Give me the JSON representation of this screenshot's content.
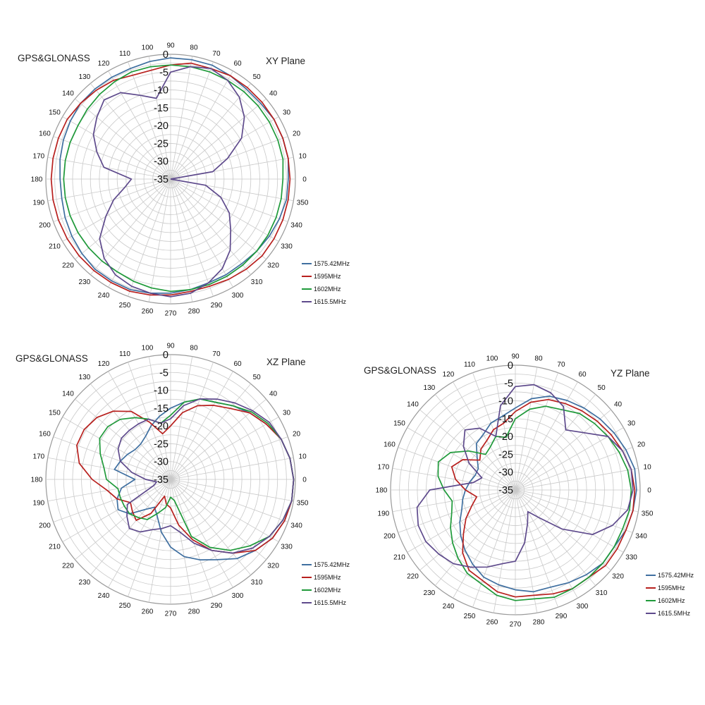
{
  "chart_data": [
    {
      "type": "polar-line",
      "title": "GPS&GLONASS",
      "subtitle": "XY Plane",
      "radial_ticks": [
        0,
        -5,
        -10,
        -15,
        -20,
        -25,
        -30,
        -35
      ],
      "rlim": [
        -35,
        0
      ],
      "angle_ticks": [
        0,
        10,
        20,
        30,
        40,
        50,
        60,
        70,
        80,
        90,
        100,
        110,
        120,
        130,
        140,
        150,
        160,
        170,
        180,
        190,
        200,
        210,
        220,
        230,
        240,
        250,
        260,
        270,
        280,
        290,
        300,
        310,
        320,
        330,
        340,
        350
      ],
      "grid": true,
      "legend_position": "bottom-right",
      "theta": [
        0,
        10,
        20,
        30,
        40,
        50,
        60,
        70,
        80,
        90,
        100,
        110,
        120,
        130,
        140,
        150,
        160,
        170,
        180,
        190,
        200,
        210,
        220,
        230,
        240,
        250,
        260,
        270,
        280,
        290,
        300,
        310,
        320,
        330,
        340,
        350
      ],
      "series": [
        {
          "name": "1575.42MHz",
          "color": "#3f6fa0",
          "values": [
            -2,
            -1.5,
            -1.5,
            -1.5,
            -2,
            -2,
            -1.5,
            -1,
            -1,
            -1,
            -1.5,
            -2,
            -2,
            -2,
            -2,
            -2.5,
            -3,
            -3.5,
            -4,
            -4,
            -3.5,
            -3,
            -2.5,
            -2,
            -2,
            -2,
            -2.5,
            -3,
            -3.5,
            -4,
            -4,
            -4,
            -3.5,
            -3,
            -2.5,
            -2
          ]
        },
        {
          "name": "1595MHz",
          "color": "#b8201e",
          "values": [
            -1.5,
            -1.5,
            -1.5,
            -1.5,
            -1.5,
            -1.5,
            -1.5,
            -2,
            -2,
            -3,
            -4,
            -4,
            -3,
            -2.5,
            -2,
            -1.5,
            -1.5,
            -1.5,
            -1.5,
            -1.5,
            -1.5,
            -1.5,
            -1.5,
            -1.5,
            -1.5,
            -1.5,
            -2,
            -2.5,
            -3,
            -3,
            -2.5,
            -2,
            -1.5,
            -1.5,
            -1.5,
            -1.5
          ]
        },
        {
          "name": "1602MHz",
          "color": "#1f9a3a",
          "values": [
            -3.5,
            -3,
            -3,
            -3,
            -3,
            -3,
            -3,
            -3,
            -3,
            -3,
            -3,
            -3,
            -3.5,
            -4,
            -4.5,
            -5,
            -5,
            -5,
            -5,
            -5,
            -5,
            -5,
            -5,
            -5,
            -5,
            -4.5,
            -4,
            -3.5,
            -3.5,
            -3.5,
            -3.5,
            -3.5,
            -3.5,
            -3.5,
            -3.5,
            -3.5
          ]
        },
        {
          "name": "1615.5MHz",
          "color": "#5e4a8c",
          "values": [
            -35,
            -23,
            -18,
            -12,
            -8,
            -5,
            -3,
            -2,
            -3,
            -5,
            -12,
            -10,
            -7,
            -6,
            -8,
            -10,
            -13,
            -16,
            -24,
            -22,
            -18,
            -14,
            -9,
            -6,
            -4,
            -3,
            -2.5,
            -2,
            -2.5,
            -4,
            -6,
            -9,
            -13,
            -16,
            -20,
            -25
          ]
        }
      ]
    },
    {
      "type": "polar-line",
      "title": "GPS&GLONASS",
      "subtitle": "XZ Plane",
      "radial_ticks": [
        0,
        -5,
        -10,
        -15,
        -20,
        -25,
        -30,
        -35
      ],
      "rlim": [
        -35,
        0
      ],
      "angle_ticks": [
        0,
        10,
        20,
        30,
        40,
        50,
        60,
        70,
        80,
        90,
        100,
        110,
        120,
        130,
        140,
        150,
        160,
        170,
        180,
        190,
        200,
        210,
        220,
        230,
        240,
        250,
        260,
        270,
        280,
        290,
        300,
        310,
        320,
        330,
        340,
        350
      ],
      "grid": true,
      "legend_position": "bottom-right",
      "theta": [
        0,
        10,
        20,
        30,
        40,
        50,
        60,
        70,
        80,
        90,
        100,
        110,
        120,
        130,
        140,
        150,
        160,
        170,
        180,
        190,
        200,
        210,
        220,
        230,
        240,
        250,
        260,
        270,
        280,
        290,
        300,
        310,
        320,
        330,
        340,
        350
      ],
      "series": [
        {
          "name": "1575.42MHz",
          "color": "#3f6fa0",
          "values": [
            -0.5,
            -1,
            -2,
            -4,
            -6,
            -8,
            -10,
            -11,
            -13,
            -15,
            -17,
            -19,
            -21,
            -22,
            -22,
            -21,
            -20,
            -19,
            -25,
            -21,
            -19,
            -18,
            -20,
            -24,
            -26,
            -24,
            -20,
            -16,
            -13,
            -11,
            -9,
            -6,
            -4,
            -2,
            -1,
            -0.5
          ]
        },
        {
          "name": "1595MHz",
          "color": "#b8201e",
          "values": [
            -0.5,
            -1,
            -2,
            -4,
            -6,
            -9,
            -11,
            -13,
            -16,
            -20,
            -22,
            -18,
            -13,
            -10,
            -8,
            -7,
            -7,
            -9,
            -13,
            -17,
            -19,
            -22,
            -21,
            -20,
            -24,
            -30,
            -28,
            -27,
            -22,
            -17,
            -12,
            -8,
            -4,
            -2,
            -1,
            -0.5
          ]
        },
        {
          "name": "1602MHz",
          "color": "#1f9a3a",
          "values": [
            -0.5,
            -1,
            -2,
            -3.5,
            -5.5,
            -8,
            -10,
            -11,
            -13,
            -17,
            -19,
            -17,
            -15,
            -13,
            -12,
            -12,
            -14,
            -16,
            -17,
            -20,
            -20,
            -20,
            -20,
            -21,
            -22,
            -25,
            -27,
            -30,
            -29,
            -18,
            -13,
            -9,
            -6,
            -3,
            -1.5,
            -0.5
          ]
        },
        {
          "name": "1615.5MHz",
          "color": "#5e4a8c",
          "values": [
            -0.5,
            -1,
            -2,
            -3,
            -5,
            -7,
            -9,
            -11,
            -14,
            -18,
            -19,
            -17,
            -17,
            -17,
            -17,
            -18,
            -20,
            -24,
            -28,
            -31,
            -30,
            -21,
            -19,
            -17,
            -18,
            -20,
            -21,
            -22,
            -20,
            -16,
            -12,
            -8,
            -5,
            -3,
            -1.5,
            -0.5
          ]
        }
      ]
    },
    {
      "type": "polar-line",
      "title": "GPS&GLONASS",
      "subtitle": "YZ Plane",
      "radial_ticks": [
        0,
        -5,
        -10,
        -15,
        -20,
        -25,
        -30,
        -35
      ],
      "rlim": [
        -35,
        0
      ],
      "angle_ticks": [
        0,
        10,
        20,
        30,
        40,
        50,
        60,
        70,
        80,
        90,
        100,
        110,
        120,
        130,
        140,
        150,
        160,
        170,
        180,
        190,
        200,
        210,
        220,
        230,
        240,
        250,
        260,
        270,
        280,
        290,
        300,
        310,
        320,
        330,
        340,
        350
      ],
      "grid": true,
      "legend_position": "bottom-right",
      "theta": [
        0,
        10,
        20,
        30,
        40,
        50,
        60,
        70,
        80,
        90,
        100,
        110,
        120,
        130,
        140,
        150,
        160,
        170,
        180,
        190,
        200,
        210,
        220,
        230,
        240,
        250,
        260,
        270,
        280,
        290,
        300,
        310,
        320,
        330,
        340,
        350
      ],
      "series": [
        {
          "name": "1575.42MHz",
          "color": "#3f6fa0",
          "values": [
            -1,
            -1,
            -2,
            -3,
            -4,
            -5,
            -6,
            -7,
            -9,
            -12,
            -14,
            -15,
            -17,
            -18,
            -21,
            -23,
            -23,
            -22,
            -21,
            -20,
            -19,
            -17,
            -15,
            -13,
            -11,
            -9,
            -8,
            -7,
            -6,
            -6,
            -5,
            -4,
            -3,
            -3,
            -2,
            -1.5
          ]
        },
        {
          "name": "1595MHz",
          "color": "#b8201e",
          "values": [
            -1.5,
            -2,
            -3,
            -4,
            -5,
            -6,
            -7,
            -8,
            -10,
            -13,
            -16,
            -17,
            -19,
            -20,
            -22,
            -18,
            -16,
            -18,
            -21,
            -24,
            -22,
            -19,
            -16,
            -12,
            -9,
            -8,
            -6,
            -5,
            -5,
            -4,
            -3,
            -3,
            -2,
            -2,
            -2,
            -1.5
          ]
        },
        {
          "name": "1602MHz",
          "color": "#1f9a3a",
          "values": [
            -2.5,
            -3,
            -4,
            -5,
            -6,
            -7,
            -9,
            -10,
            -12,
            -15,
            -20,
            -19,
            -21,
            -22,
            -18,
            -14,
            -12,
            -13,
            -15,
            -17,
            -16,
            -14,
            -12,
            -10,
            -8,
            -7,
            -5,
            -4,
            -4,
            -3,
            -3,
            -3,
            -3,
            -3,
            -3,
            -2.5
          ]
        },
        {
          "name": "1615.5MHz",
          "color": "#5e4a8c",
          "values": [
            -2,
            -2,
            -3,
            -5,
            -10,
            -13,
            -8,
            -6,
            -5,
            -6,
            -11,
            -19,
            -15,
            -13,
            -16,
            -20,
            -25,
            -23,
            -11,
            -7,
            -6,
            -6,
            -7,
            -8,
            -10,
            -12,
            -14,
            -15,
            -20,
            -25,
            -28,
            -25,
            -18,
            -10,
            -6,
            -3
          ]
        }
      ]
    }
  ]
}
